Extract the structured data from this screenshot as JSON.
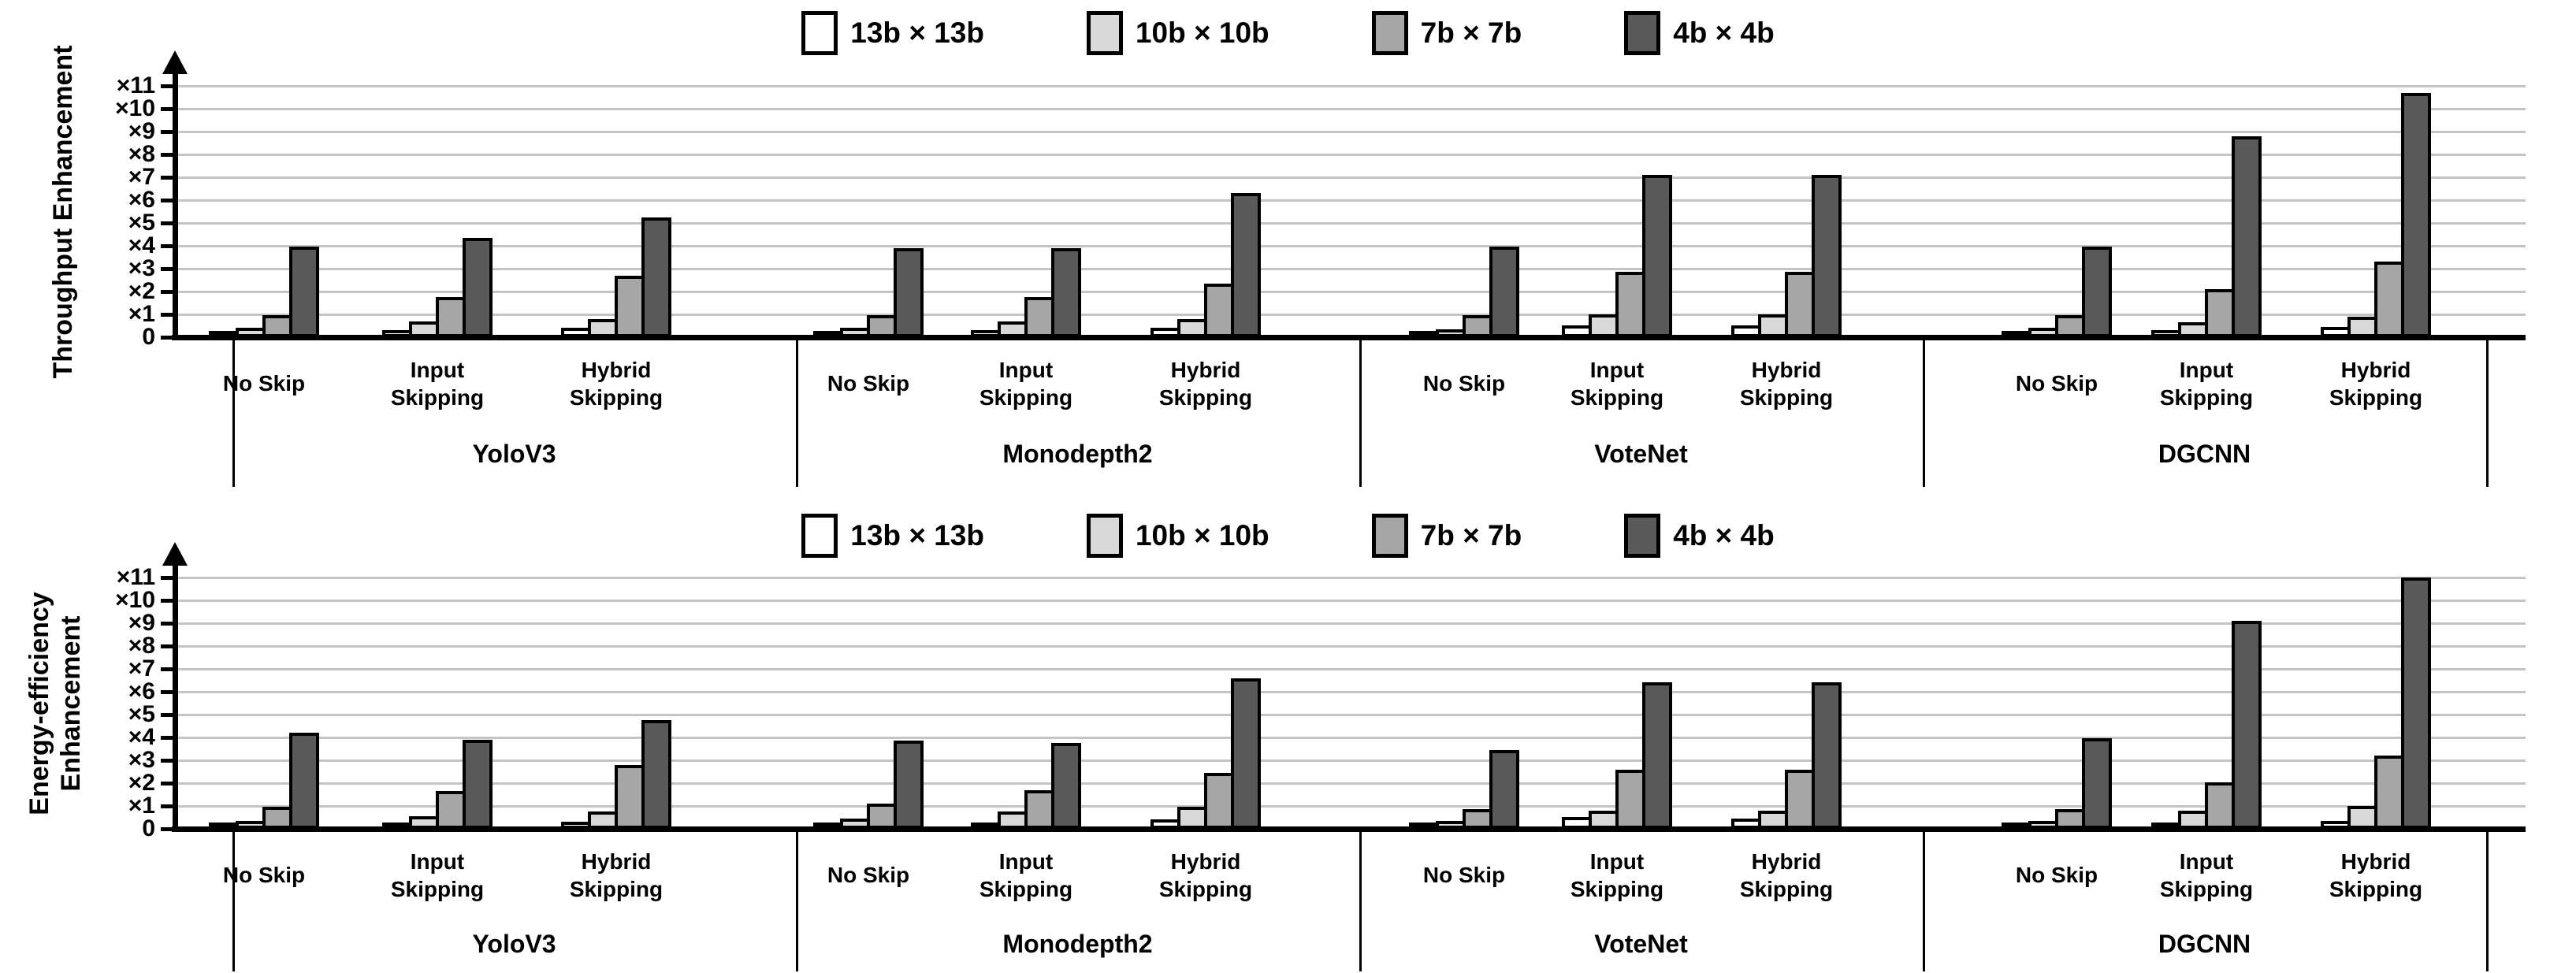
{
  "figure": {
    "background": "#ffffff",
    "grid_color": "#c4c4c4",
    "axis_color": "#000000",
    "bar_border_color": "#000000",
    "legend": [
      {
        "label": "13b × 13b",
        "color": "#ffffff"
      },
      {
        "label": "10b × 10b",
        "color": "#d9d9d9"
      },
      {
        "label": "7b × 7b",
        "color": "#a6a6a6"
      },
      {
        "label": "4b × 4b",
        "color": "#595959"
      }
    ]
  },
  "chart_data": [
    {
      "type": "bar",
      "title": "",
      "ylabel": "Throughput Enhancement",
      "ylabel_lines": [
        "Throughput Enhancement"
      ],
      "xlabel": "",
      "ylim": [
        0,
        11.6
      ],
      "grid": true,
      "legend_position": "top-center",
      "y_ticks": [
        "0",
        "×1",
        "×2",
        "×3",
        "×4",
        "×5",
        "×6",
        "×7",
        "×8",
        "×9",
        "×10",
        "×11"
      ],
      "series_names": [
        "13b × 13b",
        "10b × 10b",
        "7b × 7b",
        "4b × 4b"
      ],
      "sections": [
        {
          "name": "YoloV3",
          "groups": [
            {
              "label": "No Skip",
              "label_lines": [
                "No Skip"
              ],
              "values": [
                0.2,
                0.4,
                0.95,
                3.95
              ]
            },
            {
              "label": "Input Skipping",
              "label_lines": [
                "Input",
                "Skipping"
              ],
              "values": [
                0.3,
                0.7,
                1.75,
                4.35
              ]
            },
            {
              "label": "Hybrid Skipping",
              "label_lines": [
                "Hybrid",
                "Skipping"
              ],
              "values": [
                0.4,
                0.8,
                2.7,
                5.25
              ]
            }
          ]
        },
        {
          "name": "Monodepth2",
          "groups": [
            {
              "label": "No Skip",
              "label_lines": [
                "No Skip"
              ],
              "values": [
                0.2,
                0.4,
                0.95,
                3.9
              ]
            },
            {
              "label": "Input Skipping",
              "label_lines": [
                "Input",
                "Skipping"
              ],
              "values": [
                0.3,
                0.7,
                1.75,
                3.9
              ]
            },
            {
              "label": "Hybrid Skipping",
              "label_lines": [
                "Hybrid",
                "Skipping"
              ],
              "values": [
                0.4,
                0.8,
                2.35,
                6.3
              ]
            }
          ]
        },
        {
          "name": "VoteNet",
          "groups": [
            {
              "label": "No Skip",
              "label_lines": [
                "No Skip"
              ],
              "values": [
                0.2,
                0.35,
                0.95,
                3.95
              ]
            },
            {
              "label": "Input Skipping",
              "label_lines": [
                "Input",
                "Skipping"
              ],
              "values": [
                0.5,
                1.0,
                2.85,
                7.1
              ]
            },
            {
              "label": "Hybrid Skipping",
              "label_lines": [
                "Hybrid",
                "Skipping"
              ],
              "values": [
                0.5,
                1.0,
                2.85,
                7.1
              ]
            }
          ]
        },
        {
          "name": "DGCNN",
          "groups": [
            {
              "label": "No Skip",
              "label_lines": [
                "No Skip"
              ],
              "values": [
                0.15,
                0.4,
                0.95,
                3.95
              ]
            },
            {
              "label": "Input Skipping",
              "label_lines": [
                "Input",
                "Skipping"
              ],
              "values": [
                0.3,
                0.65,
                2.1,
                8.8
              ]
            },
            {
              "label": "Hybrid Skipping",
              "label_lines": [
                "Hybrid",
                "Skipping"
              ],
              "values": [
                0.45,
                0.9,
                3.3,
                10.7
              ]
            }
          ]
        }
      ]
    },
    {
      "type": "bar",
      "title": "",
      "ylabel": "Energy-efficiency Enhancement",
      "ylabel_lines": [
        "Energy-efficiency",
        "Enhancement"
      ],
      "xlabel": "",
      "ylim": [
        0,
        11.6
      ],
      "grid": true,
      "legend_position": "top-center",
      "y_ticks": [
        "0",
        "×1",
        "×2",
        "×3",
        "×4",
        "×5",
        "×6",
        "×7",
        "×8",
        "×9",
        "×10",
        "×11"
      ],
      "series_names": [
        "13b × 13b",
        "10b × 10b",
        "7b × 7b",
        "4b × 4b"
      ],
      "sections": [
        {
          "name": "YoloV3",
          "groups": [
            {
              "label": "No Skip",
              "label_lines": [
                "No Skip"
              ],
              "values": [
                0.15,
                0.35,
                0.95,
                4.2
              ]
            },
            {
              "label": "Input Skipping",
              "label_lines": [
                "Input",
                "Skipping"
              ],
              "values": [
                0.25,
                0.55,
                1.65,
                3.9
              ]
            },
            {
              "label": "Hybrid Skipping",
              "label_lines": [
                "Hybrid",
                "Skipping"
              ],
              "values": [
                0.3,
                0.75,
                2.8,
                4.75
              ]
            }
          ]
        },
        {
          "name": "Monodepth2",
          "groups": [
            {
              "label": "No Skip",
              "label_lines": [
                "No Skip"
              ],
              "values": [
                0.2,
                0.45,
                1.1,
                3.85
              ]
            },
            {
              "label": "Input Skipping",
              "label_lines": [
                "Input",
                "Skipping"
              ],
              "values": [
                0.25,
                0.75,
                1.7,
                3.75
              ]
            },
            {
              "label": "Hybrid Skipping",
              "label_lines": [
                "Hybrid",
                "Skipping"
              ],
              "values": [
                0.4,
                0.95,
                2.45,
                6.6
              ]
            }
          ]
        },
        {
          "name": "VoteNet",
          "groups": [
            {
              "label": "No Skip",
              "label_lines": [
                "No Skip"
              ],
              "values": [
                0.2,
                0.35,
                0.85,
                3.45
              ]
            },
            {
              "label": "Input Skipping",
              "label_lines": [
                "Input",
                "Skipping"
              ],
              "values": [
                0.5,
                0.8,
                2.6,
                6.4
              ]
            },
            {
              "label": "Hybrid Skipping",
              "label_lines": [
                "Hybrid",
                "Skipping"
              ],
              "values": [
                0.45,
                0.8,
                2.6,
                6.4
              ]
            }
          ]
        },
        {
          "name": "DGCNN",
          "groups": [
            {
              "label": "No Skip",
              "label_lines": [
                "No Skip"
              ],
              "values": [
                0.15,
                0.35,
                0.85,
                3.95
              ]
            },
            {
              "label": "Input Skipping",
              "label_lines": [
                "Input",
                "Skipping"
              ],
              "values": [
                0.25,
                0.8,
                2.05,
                9.1
              ]
            },
            {
              "label": "Hybrid Skipping",
              "label_lines": [
                "Hybrid",
                "Skipping"
              ],
              "values": [
                0.35,
                1.0,
                3.2,
                11.0
              ]
            }
          ]
        }
      ]
    }
  ]
}
